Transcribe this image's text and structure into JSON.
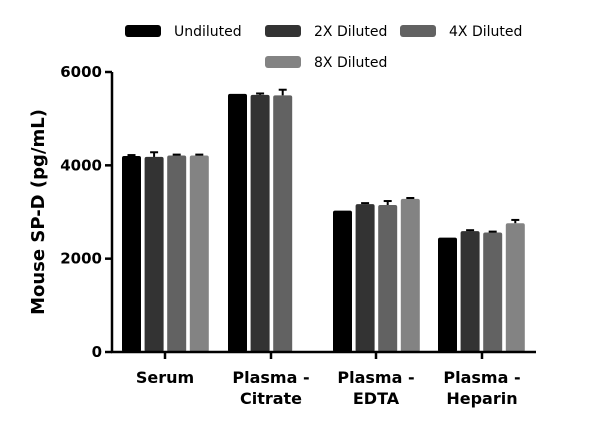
{
  "chart_data": {
    "type": "bar",
    "title": "",
    "xlabel": "",
    "ylabel": "Mouse SP-D (pg/mL)",
    "ylim": [
      0,
      6000
    ],
    "yticks": [
      0,
      2000,
      4000,
      6000
    ],
    "ytick_labels": [
      "0",
      "2000",
      "4000",
      "6000"
    ],
    "categories": [
      {
        "line1": "Serum",
        "line2": ""
      },
      {
        "line1": "Plasma -",
        "line2": "Citrate"
      },
      {
        "line1": "Plasma -",
        "line2": "EDTA"
      },
      {
        "line1": "Plasma -",
        "line2": "Heparin"
      }
    ],
    "legend_position": "top",
    "series": [
      {
        "name": "Undiluted",
        "color": "#000000",
        "values": [
          4200,
          5530,
          3030,
          2450
        ],
        "errors": [
          20,
          0,
          0,
          0
        ]
      },
      {
        "name": "2X Diluted",
        "color": "#333333",
        "values": [
          4180,
          5510,
          3170,
          2590
        ],
        "errors": [
          100,
          30,
          20,
          20
        ]
      },
      {
        "name": "4X Diluted",
        "color": "#626262",
        "values": [
          4210,
          5500,
          3150,
          2560
        ],
        "errors": [
          20,
          120,
          85,
          20
        ]
      },
      {
        "name": "8X Diluted",
        "color": "#838383",
        "values": [
          4210,
          null,
          3280,
          2760
        ],
        "errors": [
          20,
          null,
          20,
          70
        ]
      }
    ]
  }
}
